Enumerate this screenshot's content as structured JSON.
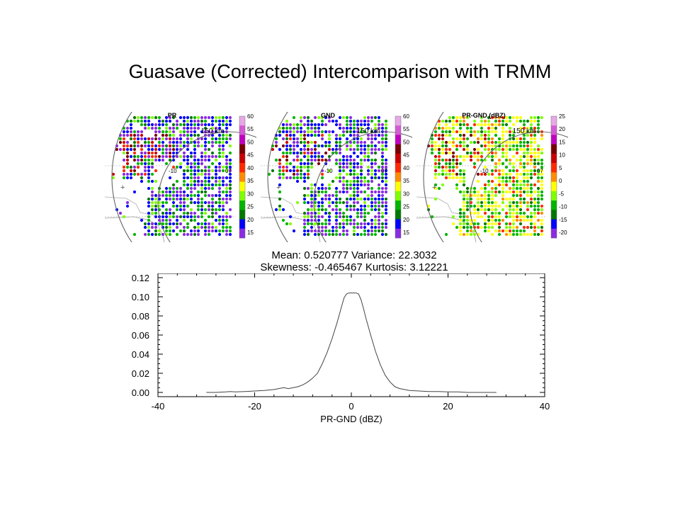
{
  "title": "Guasave (Corrected) Intercomparison with TRMM",
  "panels": [
    {
      "title": "PR",
      "range_label": "150 km",
      "side_labels": [
        "-10",
        "07"
      ],
      "colorbar": {
        "labels": [
          "60",
          "55",
          "50",
          "45",
          "40",
          "35",
          "30",
          "25",
          "20",
          "15"
        ],
        "colors": [
          "#e6a8e6",
          "#d45ad4",
          "#c000c0",
          "#780000",
          "#c80000",
          "#ff2a00",
          "#ff8c00",
          "#ffff00",
          "#7fff00",
          "#00b400",
          "#007800",
          "#0000ff",
          "#8a2be2"
        ]
      }
    },
    {
      "title": "GND",
      "range_label": "150 km",
      "side_labels": [
        "-10",
        "07"
      ],
      "colorbar": {
        "labels": [
          "60",
          "55",
          "50",
          "45",
          "40",
          "35",
          "30",
          "25",
          "20",
          "15"
        ],
        "colors": [
          "#e6a8e6",
          "#d45ad4",
          "#c000c0",
          "#780000",
          "#c80000",
          "#ff2a00",
          "#ff8c00",
          "#ffff00",
          "#7fff00",
          "#00b400",
          "#007800",
          "#0000ff",
          "#8a2be2"
        ]
      }
    },
    {
      "title": "PR-GND (dBZ)",
      "range_label": "150 km",
      "side_labels": [
        "-10",
        "07"
      ],
      "colorbar": {
        "labels": [
          "25",
          "20",
          "15",
          "10",
          "5",
          "0",
          "-5",
          "-10",
          "-15",
          "-20"
        ],
        "colors": [
          "#e6a8e6",
          "#d45ad4",
          "#c000c0",
          "#780000",
          "#c80000",
          "#ff2a00",
          "#ff8c00",
          "#ffff00",
          "#7fff00",
          "#00b400",
          "#007800",
          "#0000ff",
          "#8a2be2"
        ]
      }
    }
  ],
  "stats": {
    "line1": "Mean: 0.520777 Variance: 22.3032",
    "line2": "Skewness: -0.465467 Kurtosis: 3.12221"
  },
  "chart_data": {
    "type": "line",
    "xlabel": "PR-GND (dBZ)",
    "ylabel": "",
    "xlim": [
      -40,
      40
    ],
    "ylim": [
      0,
      0.12
    ],
    "xticks": [
      "-40",
      "-20",
      "0",
      "20",
      "40"
    ],
    "yticks": [
      "0.00",
      "0.02",
      "0.04",
      "0.06",
      "0.08",
      "0.10",
      "0.12"
    ],
    "series": [
      {
        "x": [
          -30,
          -28,
          -26,
          -25,
          -24,
          -22,
          -20,
          -18,
          -16,
          -15,
          -14,
          -13,
          -12,
          -11,
          -10,
          -9,
          -8,
          -7,
          -6,
          -5,
          -4,
          -3,
          -2,
          -1.5,
          -1,
          -0.5,
          0,
          0.5,
          1,
          1.5,
          2,
          2.5,
          3,
          4,
          5,
          6,
          7,
          8,
          9,
          10,
          11,
          12,
          14,
          16,
          18,
          20,
          22,
          24,
          26,
          28,
          30
        ],
        "y": [
          0.0,
          0.0,
          0.0005,
          0.001,
          0.0005,
          0.001,
          0.0015,
          0.002,
          0.003,
          0.004,
          0.005,
          0.004,
          0.005,
          0.006,
          0.008,
          0.011,
          0.015,
          0.02,
          0.03,
          0.042,
          0.056,
          0.072,
          0.09,
          0.099,
          0.103,
          0.104,
          0.104,
          0.104,
          0.104,
          0.103,
          0.097,
          0.088,
          0.078,
          0.06,
          0.043,
          0.029,
          0.018,
          0.011,
          0.006,
          0.004,
          0.003,
          0.002,
          0.0015,
          0.001,
          0.001,
          0.0005,
          0.0005,
          0.0,
          0.0,
          0.0,
          0.0
        ]
      }
    ]
  }
}
